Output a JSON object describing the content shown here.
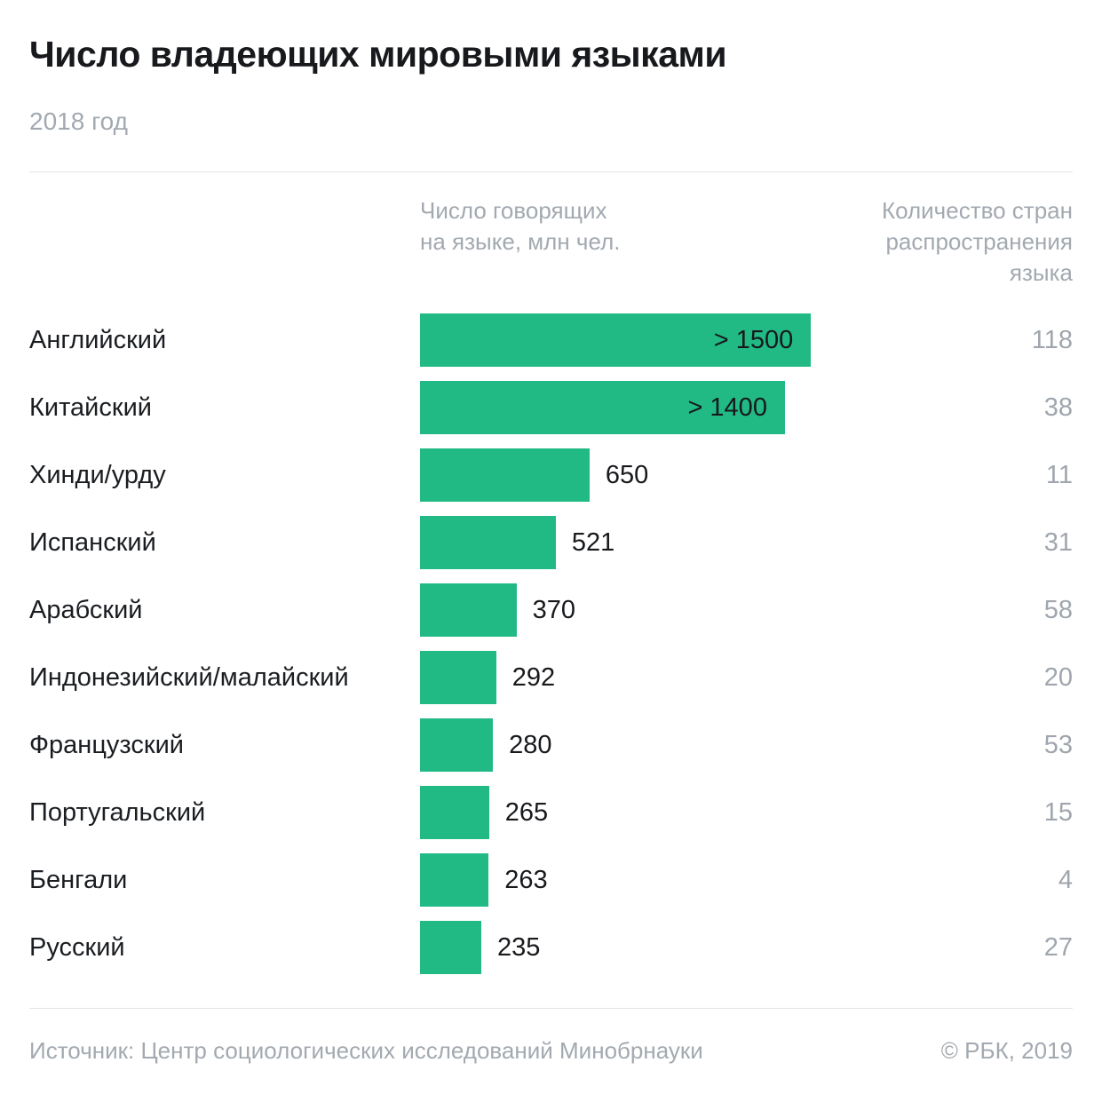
{
  "header": {
    "title": "Число владеющих мировыми языками",
    "subtitle": "2018 год"
  },
  "columns": {
    "speakers_header": "Число говорящих\nна языке, млн чел.",
    "countries_header": "Количество стран\nраспространения\nязыка"
  },
  "footer": {
    "source": "Источник: Центр социологических исследований Минобрнауки",
    "copyright": "© РБК, 2019"
  },
  "colors": {
    "bar": "#21ba85",
    "text_dark": "#1a1d21",
    "text_gray": "#a3a9b0"
  },
  "chart_data": {
    "type": "bar",
    "orientation": "horizontal",
    "title": "Число владеющих мировыми языками",
    "subtitle": "2018 год",
    "categories": [
      "Английский",
      "Китайский",
      "Хинди/урду",
      "Испанский",
      "Арабский",
      "Индонезийский/малайский",
      "Французский",
      "Португальский",
      "Бенгали",
      "Русский"
    ],
    "series": [
      {
        "name": "Число говорящих на языке, млн чел.",
        "values": [
          1500,
          1400,
          650,
          521,
          370,
          292,
          280,
          265,
          263,
          235
        ],
        "labels": [
          "> 1500",
          "> 1400",
          "650",
          "521",
          "370",
          "292",
          "280",
          "265",
          "263",
          "235"
        ]
      },
      {
        "name": "Количество стран распространения языка",
        "values": [
          118,
          38,
          11,
          31,
          58,
          20,
          53,
          15,
          4,
          27
        ]
      }
    ],
    "xlim": [
      0,
      1550
    ],
    "grid": false,
    "legend_position": "column-headers",
    "value_label_inside_threshold": 1000
  }
}
